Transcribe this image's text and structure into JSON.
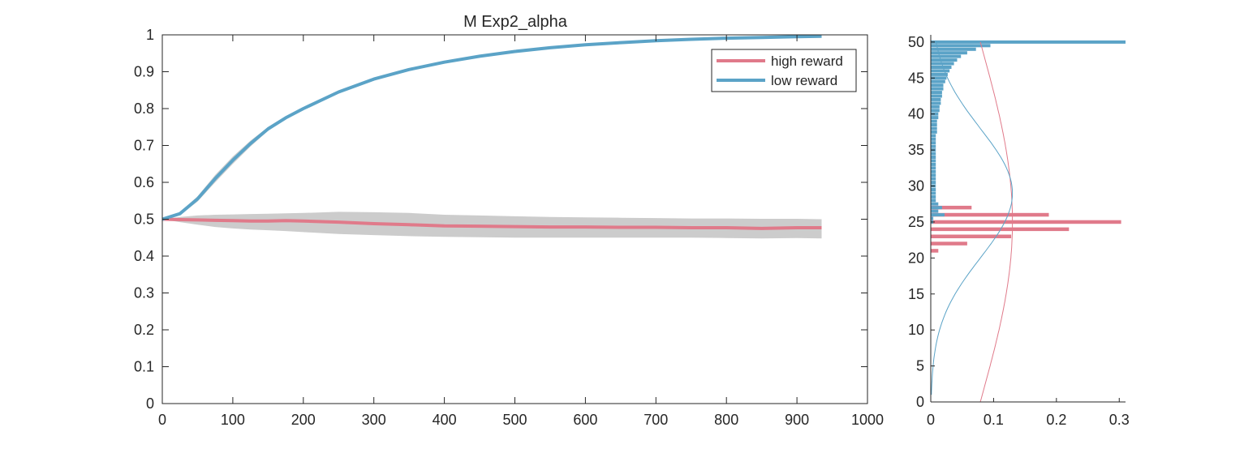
{
  "figure": {
    "title": "M  Exp2_alpha"
  },
  "chart_data": [
    {
      "type": "line",
      "title": "M  Exp2_alpha",
      "xlabel": "",
      "ylabel": "",
      "xlim": [
        0,
        1000
      ],
      "ylim": [
        0,
        1
      ],
      "xticks": [
        0,
        100,
        200,
        300,
        400,
        500,
        600,
        700,
        800,
        900,
        1000
      ],
      "yticks": [
        0,
        0.1,
        0.2,
        0.3,
        0.4,
        0.5,
        0.6,
        0.7,
        0.8,
        0.9,
        1
      ],
      "xtick_labels": [
        "0",
        "100",
        "200",
        "300",
        "400",
        "500",
        "600",
        "700",
        "800",
        "900",
        "1000"
      ],
      "ytick_labels": [
        "0",
        "0.1",
        "0.2",
        "0.3",
        "0.4",
        "0.5",
        "0.6",
        "0.7",
        "0.8",
        "0.9",
        "1"
      ],
      "grid": false,
      "legend": {
        "position": "top-right"
      },
      "x": [
        0,
        25,
        50,
        75,
        100,
        125,
        150,
        175,
        200,
        250,
        300,
        350,
        400,
        450,
        500,
        550,
        600,
        650,
        700,
        750,
        800,
        850,
        900,
        935
      ],
      "series": [
        {
          "name": "high reward",
          "color": "#E07A8A",
          "values": [
            0.5,
            0.499,
            0.498,
            0.497,
            0.496,
            0.495,
            0.495,
            0.496,
            0.495,
            0.492,
            0.488,
            0.485,
            0.482,
            0.481,
            0.48,
            0.479,
            0.479,
            0.478,
            0.478,
            0.477,
            0.477,
            0.475,
            0.477,
            0.477
          ],
          "band_lower": [
            0.5,
            0.492,
            0.485,
            0.479,
            0.475,
            0.472,
            0.47,
            0.468,
            0.465,
            0.46,
            0.457,
            0.454,
            0.452,
            0.451,
            0.45,
            0.45,
            0.45,
            0.45,
            0.45,
            0.45,
            0.449,
            0.448,
            0.449,
            0.448
          ],
          "band_upper": [
            0.5,
            0.506,
            0.51,
            0.512,
            0.513,
            0.514,
            0.515,
            0.516,
            0.517,
            0.52,
            0.519,
            0.517,
            0.512,
            0.51,
            0.508,
            0.506,
            0.505,
            0.504,
            0.503,
            0.502,
            0.502,
            0.501,
            0.501,
            0.5
          ]
        },
        {
          "name": "low reward",
          "color": "#5BA3C7",
          "values": [
            0.5,
            0.515,
            0.555,
            0.61,
            0.66,
            0.705,
            0.745,
            0.775,
            0.8,
            0.845,
            0.88,
            0.906,
            0.926,
            0.942,
            0.955,
            0.965,
            0.973,
            0.979,
            0.984,
            0.988,
            0.991,
            0.993,
            0.995,
            0.996
          ],
          "band_lower": [
            0.5,
            0.511,
            0.548,
            0.6,
            0.65,
            0.697,
            0.74,
            0.772,
            0.797,
            0.842,
            0.877,
            0.904,
            0.924,
            0.94,
            0.953,
            0.963,
            0.972,
            0.978,
            0.983,
            0.987,
            0.99,
            0.992,
            0.994,
            0.995
          ],
          "band_upper": [
            0.5,
            0.519,
            0.562,
            0.62,
            0.67,
            0.713,
            0.75,
            0.778,
            0.803,
            0.848,
            0.883,
            0.908,
            0.928,
            0.944,
            0.957,
            0.967,
            0.974,
            0.98,
            0.985,
            0.989,
            0.992,
            0.994,
            0.996,
            0.997
          ]
        }
      ],
      "band_color": "#CCCCCC"
    },
    {
      "type": "bar",
      "orientation": "horizontal",
      "title": "",
      "xlim": [
        0,
        0.31
      ],
      "ylim": [
        0,
        51
      ],
      "xticks": [
        0,
        0.1,
        0.2,
        0.3
      ],
      "yticks": [
        0,
        5,
        10,
        15,
        20,
        25,
        30,
        35,
        40,
        45,
        50
      ],
      "xtick_labels": [
        "0",
        "0.1",
        "0.2",
        "0.3"
      ],
      "ytick_labels": [
        "0",
        "5",
        "10",
        "15",
        "20",
        "25",
        "30",
        "35",
        "40",
        "45",
        "50"
      ],
      "grid": false,
      "series": [
        {
          "name": "high reward",
          "color": "#E07A8A",
          "bins": [
            21,
            22,
            23,
            24,
            25,
            26,
            27
          ],
          "values": [
            0.012,
            0.058,
            0.128,
            0.22,
            0.303,
            0.188,
            0.065
          ],
          "fit_curve": {
            "type": "normal",
            "mean": 25,
            "sd": 25,
            "peak": 0.13,
            "y_range": [
              0,
              50
            ]
          }
        },
        {
          "name": "low reward",
          "color": "#5BA3C7",
          "bins": [
            25,
            25.5,
            26,
            26.5,
            27,
            27.5,
            28,
            28.5,
            29,
            29.5,
            30,
            30.5,
            31,
            31.5,
            32,
            32.5,
            33,
            33.5,
            34,
            34.5,
            35,
            35.5,
            36,
            36.5,
            37,
            37.5,
            38,
            38.5,
            39,
            39.5,
            40,
            40.5,
            41,
            41.5,
            42,
            42.5,
            43,
            43.5,
            44,
            44.5,
            45,
            45.5,
            46,
            46.5,
            47,
            47.5,
            48,
            48.5,
            49,
            49.5,
            50
          ],
          "values": [
            0.004,
            0.004,
            0.022,
            0.012,
            0.018,
            0.012,
            0.008,
            0.008,
            0.008,
            0.008,
            0.008,
            0.008,
            0.008,
            0.008,
            0.008,
            0.008,
            0.008,
            0.008,
            0.008,
            0.008,
            0.008,
            0.008,
            0.008,
            0.008,
            0.008,
            0.01,
            0.01,
            0.01,
            0.01,
            0.012,
            0.012,
            0.014,
            0.014,
            0.016,
            0.016,
            0.018,
            0.018,
            0.02,
            0.02,
            0.023,
            0.025,
            0.027,
            0.03,
            0.033,
            0.037,
            0.042,
            0.048,
            0.058,
            0.072,
            0.095,
            0.31
          ],
          "fit_curve": {
            "type": "normal",
            "mean": 29,
            "sd": 9,
            "peak": 0.13,
            "y_range": [
              1,
              50
            ]
          }
        }
      ]
    }
  ]
}
